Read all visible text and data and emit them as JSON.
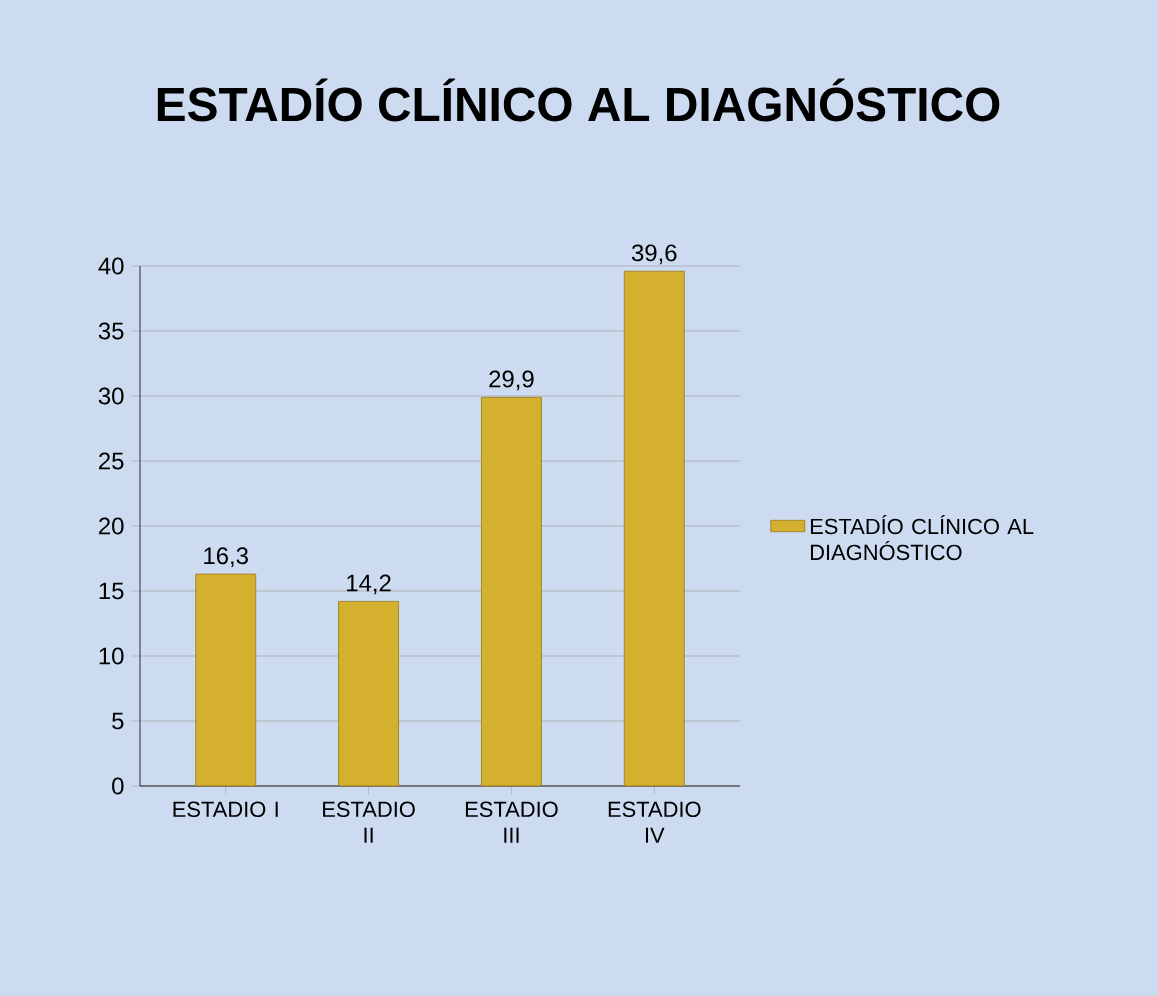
{
  "chart_data": {
    "type": "bar",
    "title": "ESTADÍO CLÍNICO AL DIAGNÓSTICO",
    "categories": [
      "ESTADIO I",
      "ESTADIO II",
      "ESTADIO III",
      "ESTADIO IV"
    ],
    "series": [
      {
        "name": "ESTADÍO CLÍNICO AL DIAGNÓSTICO",
        "color": "#d4b02e",
        "values": [
          16.3,
          14.2,
          29.9,
          39.6
        ],
        "value_labels": [
          "16,3",
          "14,2",
          "29,9",
          "39,6"
        ]
      }
    ],
    "ylim": [
      0,
      40
    ],
    "yticks": [
      0,
      5,
      10,
      15,
      20,
      25,
      30,
      35,
      40
    ],
    "grid": "y",
    "legend": "right"
  }
}
